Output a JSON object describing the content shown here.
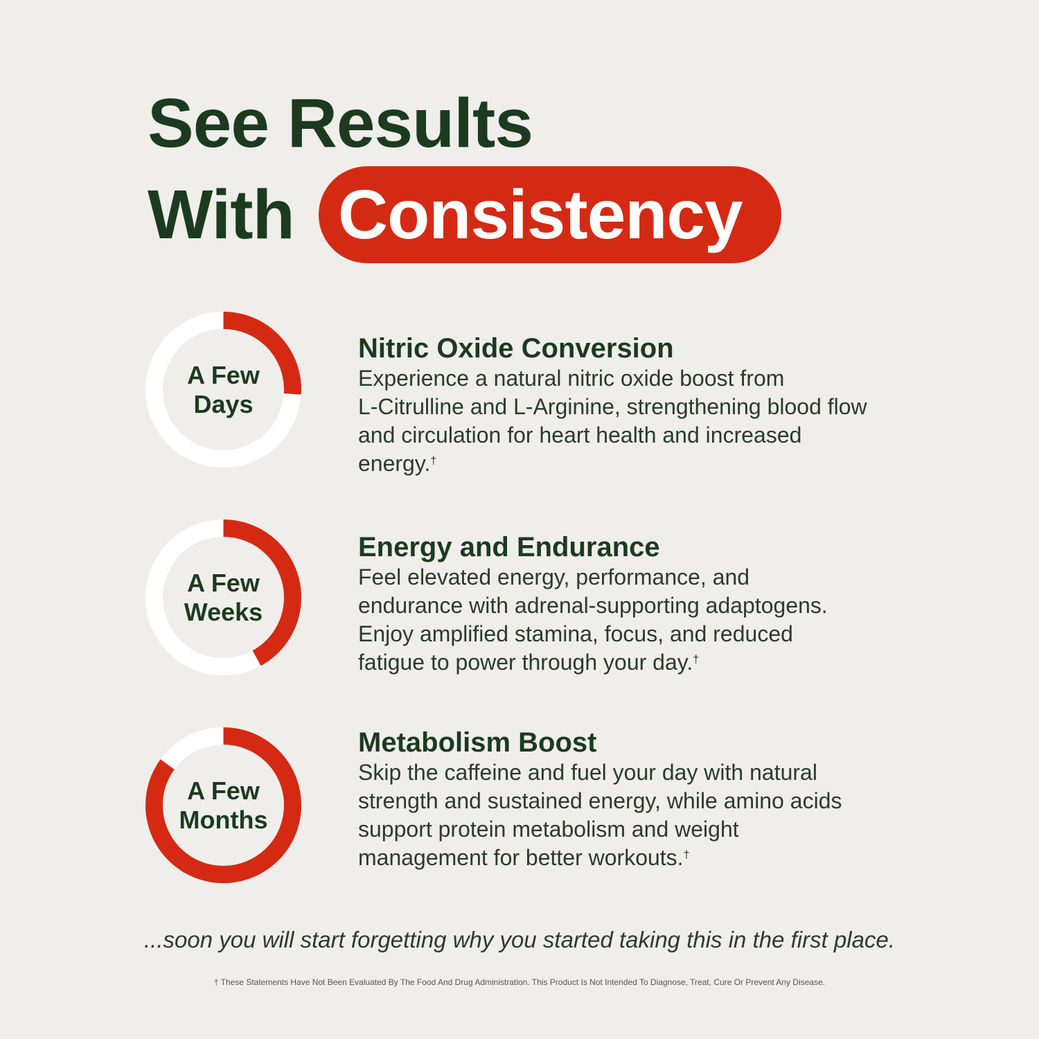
{
  "title": {
    "line1": "See Results",
    "line2_prefix": "With",
    "highlight": "Consistency"
  },
  "colors": {
    "background": "#efeeeb",
    "dark_green": "#1c3a1f",
    "red": "#d42a14",
    "ring_track": "#ffffff"
  },
  "items": [
    {
      "ring_label": [
        "A Few",
        "Days"
      ],
      "progress": 0.26,
      "heading": "Nitric Oxide Conversion",
      "lines": [
        "Experience a natural nitric oxide boost from",
        "L-Citrulline and L-Arginine, strengthening blood flow",
        "and circulation for heart health and increased",
        "energy."
      ],
      "mark": "†"
    },
    {
      "ring_label": [
        "A Few",
        "Weeks"
      ],
      "progress": 0.42,
      "heading": "Energy and Endurance",
      "lines": [
        "Feel elevated energy, performance, and",
        "endurance with adrenal-supporting adaptogens.",
        "Enjoy amplified stamina, focus, and reduced",
        "fatigue to power through your day."
      ],
      "mark": "†"
    },
    {
      "ring_label": [
        "A Few",
        "Months"
      ],
      "progress": 0.85,
      "heading": "Metabolism Boost",
      "lines": [
        "Skip the caffeine and fuel your day with natural",
        "strength and sustained energy, while amino acids",
        "support protein metabolism and weight",
        "management for better workouts."
      ],
      "mark": "†"
    }
  ],
  "tagline": "...soon you will start forgetting why you started taking this in the first place.",
  "disclaimer": "† These Statements Have Not Been Evaluated By The Food And Drug Administration. This Product Is Not Intended To Diagnose, Treat, Cure Or Prevent Any Disease."
}
